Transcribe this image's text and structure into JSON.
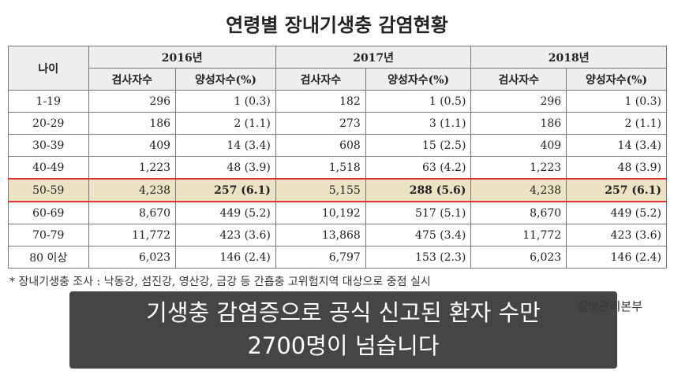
{
  "title": "연령별 장내기생충 감염현황",
  "table": {
    "age_header": "나이",
    "years": [
      "2016년",
      "2017년",
      "2018년"
    ],
    "sub_headers": [
      "검사자수",
      "양성자수(%)"
    ],
    "highlight_row": 4,
    "rows": [
      [
        "1-19",
        "296",
        "1 (0.3)",
        "182",
        "1 (0.5)",
        "296",
        "1 (0.3)"
      ],
      [
        "20-29",
        "186",
        "2 (1.1)",
        "273",
        "3 (1.1)",
        "186",
        "2 (1.1)"
      ],
      [
        "30-39",
        "409",
        "14 (3.4)",
        "608",
        "15 (2.5)",
        "409",
        "14 (3.4)"
      ],
      [
        "40-49",
        "1,223",
        "48 (3.9)",
        "1,518",
        "63 (4.2)",
        "1,223",
        "48 (3.9)"
      ],
      [
        "50-59",
        "4,238",
        "257 (6.1)",
        "5,155",
        "288 (5.6)",
        "4,238",
        "257 (6.1)"
      ],
      [
        "60-69",
        "8,670",
        "449 (5.2)",
        "10,192",
        "517 (5.1)",
        "8,670",
        "449 (5.2)"
      ],
      [
        "70-79",
        "11,772",
        "423 (3.6)",
        "13,868",
        "475 (3.4)",
        "11,772",
        "423 (3.6)"
      ],
      [
        "80 이상",
        "6,023",
        "146 (2.4)",
        "6,797",
        "153 (2.3)",
        "6,023",
        "146 (2.4)"
      ]
    ]
  },
  "footnote": "* 장내기생충 조사 : 낙동강, 섬진강, 영산강, 금강 등 간흡충 고위험지역 대상으로 중점 실시",
  "source": "질병관리본부",
  "caption": [
    "기생충 감염증으로 공식 신고된 환자 수만",
    "2700명이 넘습니다"
  ]
}
